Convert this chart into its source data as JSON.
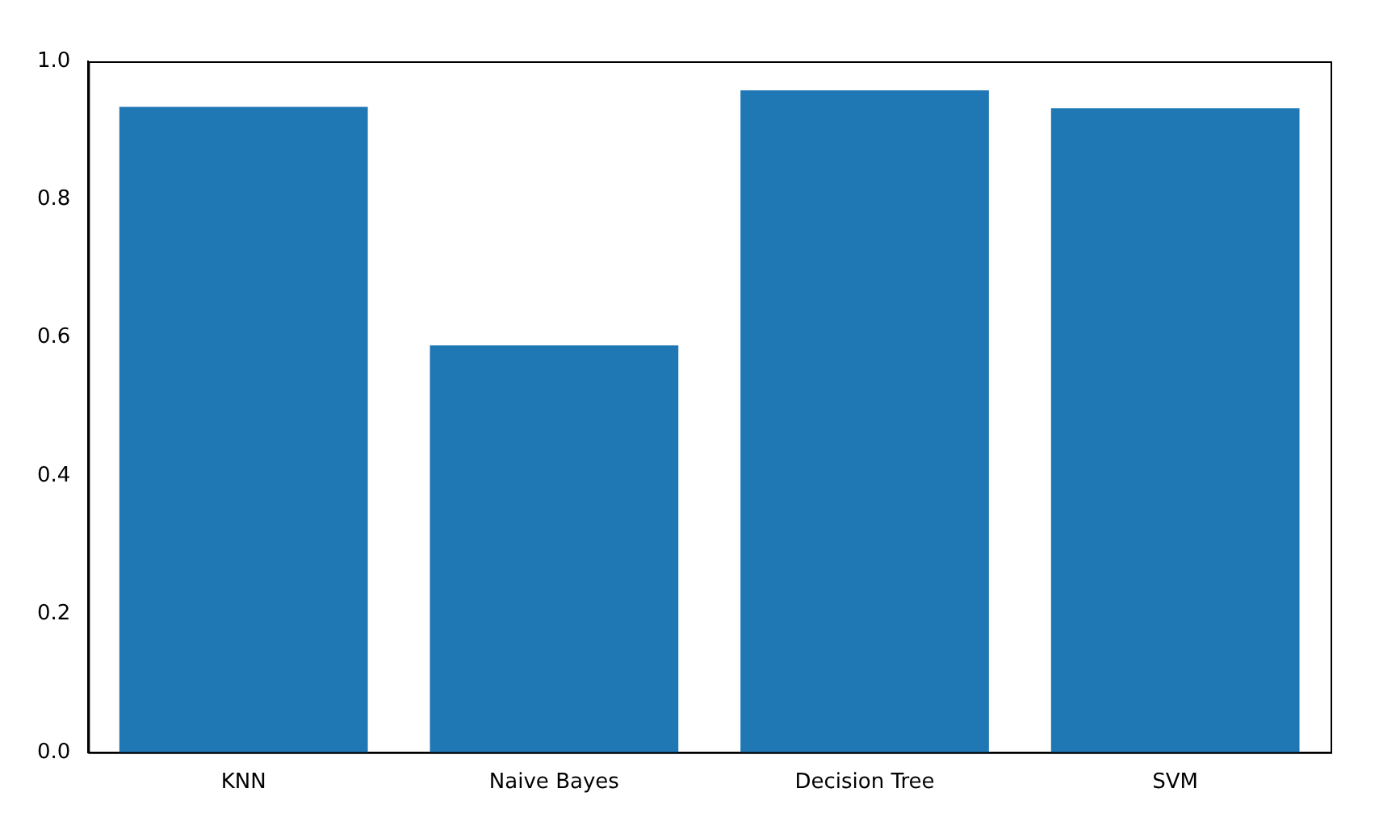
{
  "chart_data": {
    "type": "bar",
    "categories": [
      "KNN",
      "Naive Bayes",
      "Decision Tree",
      "SVM"
    ],
    "values": [
      0.934,
      0.589,
      0.958,
      0.932
    ],
    "color": "#1f77b4",
    "ylim": [
      0,
      1
    ],
    "yticks": [
      {
        "value": 0,
        "label": "0.0"
      },
      {
        "value": 0.2,
        "label": "0.2"
      },
      {
        "value": 0.4,
        "label": "0.4"
      },
      {
        "value": 0.6,
        "label": "0.6"
      },
      {
        "value": 0.8,
        "label": "0.8"
      },
      {
        "value": 1,
        "label": "1.0"
      }
    ],
    "grid": false,
    "legend": false
  }
}
